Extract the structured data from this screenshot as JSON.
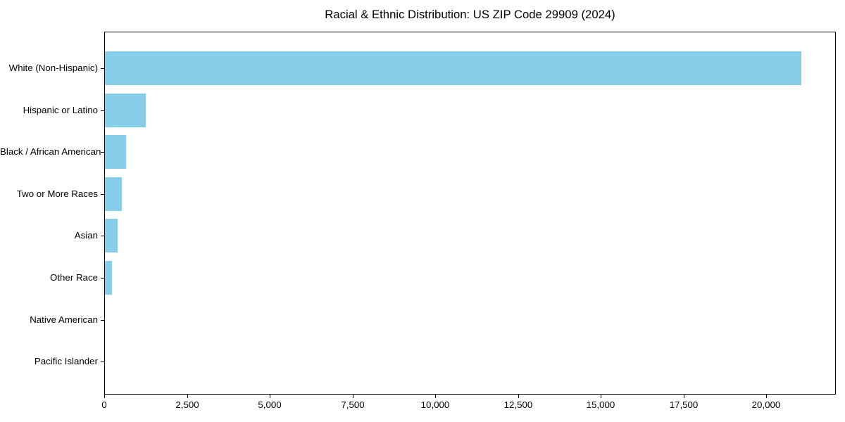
{
  "chart_data": {
    "type": "bar",
    "orientation": "horizontal",
    "title": "Racial & Ethnic Distribution: US ZIP Code 29909 (2024)",
    "categories": [
      "White (Non-Hispanic)",
      "Hispanic or Latino",
      "Black / African American",
      "Two or More Races",
      "Asian",
      "Other Race",
      "Native American",
      "Pacific Islander"
    ],
    "values": [
      21040,
      1225,
      640,
      510,
      380,
      220,
      0,
      0
    ],
    "bar_color": "#87CEEB",
    "xlabel": "",
    "ylabel": "",
    "xlim": [
      0,
      22100
    ],
    "xticks": [
      0,
      2500,
      5000,
      7500,
      10000,
      12500,
      15000,
      17500,
      20000
    ],
    "grid": false,
    "legend_position": "none"
  }
}
